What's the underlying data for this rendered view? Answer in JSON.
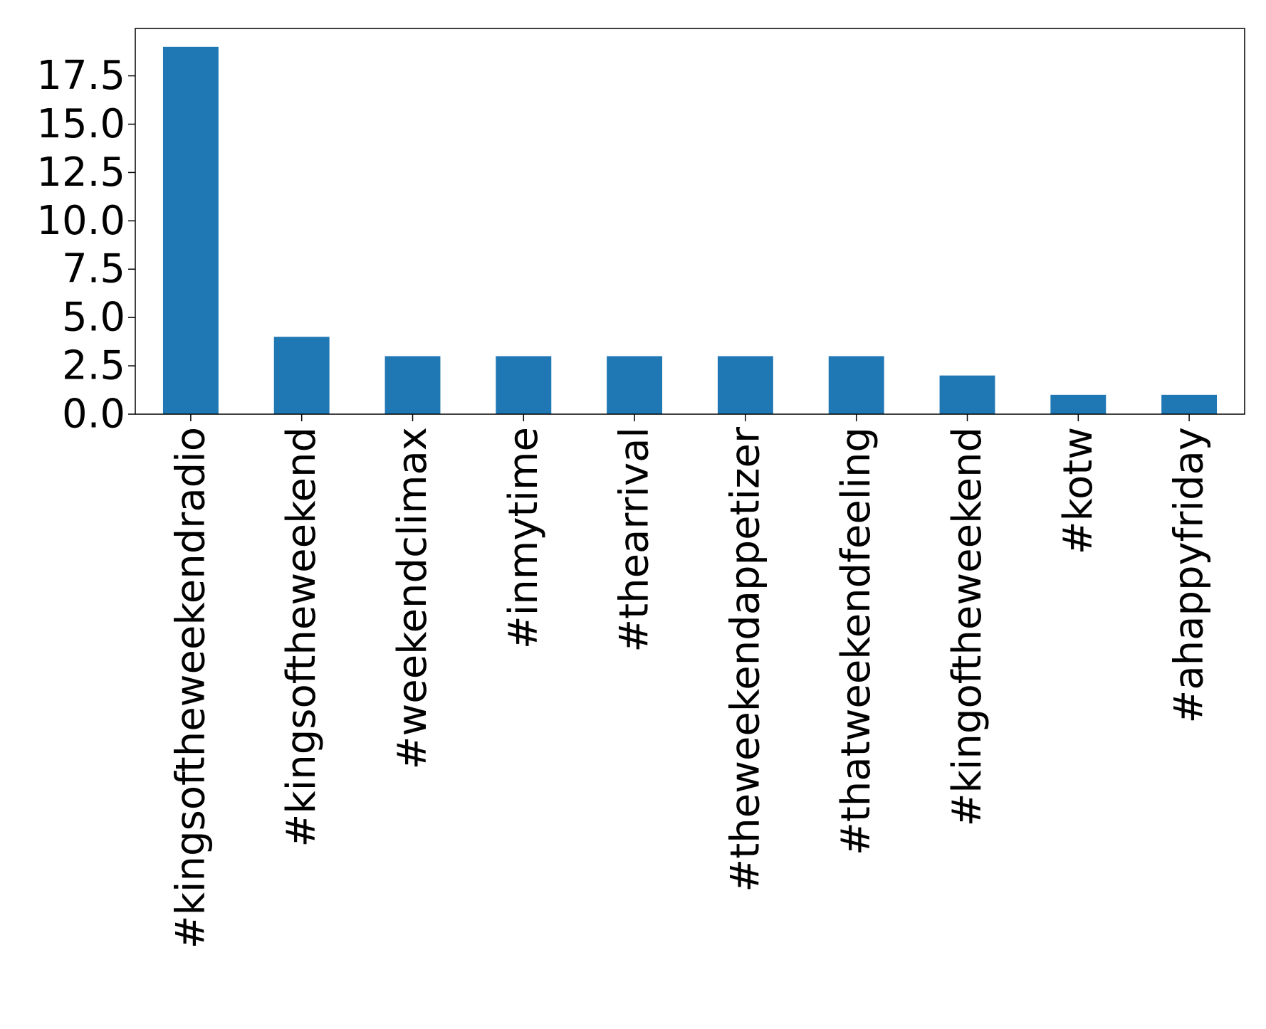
{
  "chart_data": {
    "type": "bar",
    "title": "",
    "xlabel": "",
    "ylabel": "",
    "categories": [
      "#kingsoftheweekendradio",
      "#kingsoftheweekend",
      "#weekendclimax",
      "#inmytime",
      "#thearrival",
      "#theweekendappetizer",
      "#thatweekendfeeling",
      "#kingoftheweekend",
      "#kotw",
      "#ahappyfriday"
    ],
    "values": [
      19,
      4,
      3,
      3,
      3,
      3,
      3,
      2,
      1,
      1
    ],
    "ylim": [
      0,
      19.95
    ],
    "yticks": [
      0.0,
      2.5,
      5.0,
      7.5,
      10.0,
      12.5,
      15.0,
      17.5
    ],
    "ytick_labels": [
      "0.0",
      "2.5",
      "5.0",
      "7.5",
      "10.0",
      "12.5",
      "15.0",
      "17.5"
    ],
    "bar_color": "#1f77b4",
    "grid": false,
    "legend": "none"
  }
}
